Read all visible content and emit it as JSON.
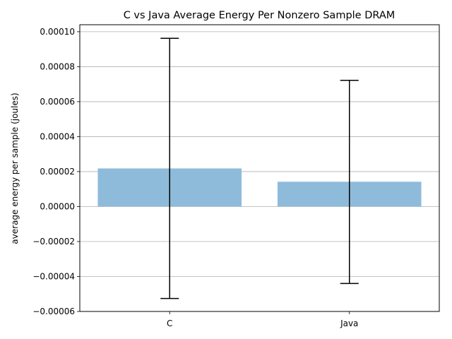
{
  "chart_data": {
    "type": "bar",
    "title": "C vs Java Average Energy Per Nonzero Sample DRAM",
    "xlabel": "",
    "ylabel": "average energy per sample (joules)",
    "categories": [
      "C",
      "Java"
    ],
    "values": [
      2.18e-05,
      1.42e-05
    ],
    "error_bars": [
      {
        "upper": 9.62e-05,
        "lower": -5.26e-05
      },
      {
        "upper": 7.22e-05,
        "lower": -4.4e-05
      }
    ],
    "ylim": [
      -6e-05,
      0.000104
    ],
    "yticks": [
      -6e-05,
      -4e-05,
      -2e-05,
      0.0,
      2e-05,
      4e-05,
      6e-05,
      8e-05,
      0.0001
    ],
    "ytick_labels": [
      "−0.00006",
      "−0.00004",
      "−0.00002",
      "0.00000",
      "0.00002",
      "0.00004",
      "0.00006",
      "0.00008",
      "0.00010"
    ],
    "grid": "y",
    "bar_color": "#8fbbda",
    "error_color": "#000000"
  }
}
